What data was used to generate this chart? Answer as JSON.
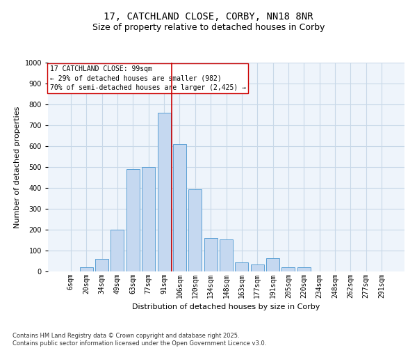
{
  "title1": "17, CATCHLAND CLOSE, CORBY, NN18 8NR",
  "title2": "Size of property relative to detached houses in Corby",
  "xlabel": "Distribution of detached houses by size in Corby",
  "ylabel": "Number of detached properties",
  "categories": [
    "6sqm",
    "20sqm",
    "34sqm",
    "49sqm",
    "63sqm",
    "77sqm",
    "91sqm",
    "106sqm",
    "120sqm",
    "134sqm",
    "148sqm",
    "163sqm",
    "177sqm",
    "191sqm",
    "205sqm",
    "220sqm",
    "234sqm",
    "248sqm",
    "262sqm",
    "277sqm",
    "291sqm"
  ],
  "values": [
    0,
    20,
    60,
    200,
    490,
    500,
    760,
    610,
    395,
    160,
    155,
    45,
    35,
    65,
    20,
    20,
    0,
    0,
    0,
    0,
    0
  ],
  "bar_color": "#c5d8f0",
  "bar_edge_color": "#5a9fd4",
  "grid_color": "#c8d8e8",
  "background_color": "#eef4fb",
  "vline_index": 6.5,
  "vline_color": "#cc0000",
  "ylim": [
    0,
    1000
  ],
  "annotation_box_text": "17 CATCHLAND CLOSE: 99sqm\n← 29% of detached houses are smaller (982)\n70% of semi-detached houses are larger (2,425) →",
  "footer": "Contains HM Land Registry data © Crown copyright and database right 2025.\nContains public sector information licensed under the Open Government Licence v3.0.",
  "title_fontsize": 10,
  "subtitle_fontsize": 9,
  "axis_fontsize": 8,
  "tick_fontsize": 7,
  "annotation_fontsize": 7,
  "footer_fontsize": 6,
  "bar_width": 0.85
}
